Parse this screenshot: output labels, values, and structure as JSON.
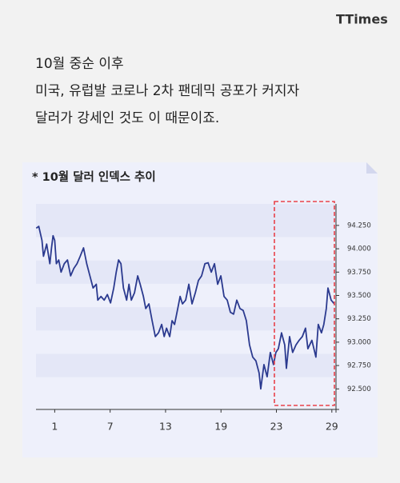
{
  "logo": "TTimes",
  "text_lines": [
    "10월 중순 이후",
    "미국, 유럽발 코로나 2차 팬데믹 공포가 커지자",
    "달러가 강세인 것도 이 때문이죠."
  ],
  "chart_data": {
    "type": "line",
    "title": "* 10월  달러 인덱스 추이",
    "color": "#2b3a8f",
    "x": [
      -0.33,
      -0.15,
      0.08,
      0.19,
      0.42,
      0.65,
      0.77,
      0.88,
      1.0,
      1.12,
      1.29,
      1.46,
      1.69,
      1.92,
      2.15,
      2.38,
      2.61,
      2.84,
      3.08,
      3.31,
      3.54,
      3.77,
      4.0,
      4.11,
      4.34,
      4.57,
      4.8,
      5.03,
      5.26,
      5.44,
      5.61,
      5.78,
      5.96,
      6.19,
      6.36,
      6.53,
      6.76,
      6.99,
      7.17,
      7.4,
      7.57,
      7.8,
      8.03,
      8.26,
      8.49,
      8.72,
      8.9,
      9.07,
      9.3,
      9.47,
      9.65,
      9.88,
      10.05,
      10.22,
      10.45,
      10.68,
      10.91,
      11.15,
      11.37,
      11.6,
      11.84,
      12.07,
      12.3,
      12.53,
      12.76,
      12.99,
      13.22,
      13.45,
      13.68,
      13.91,
      14.14,
      14.37,
      14.6,
      14.83,
      15.06,
      15.29,
      15.52,
      15.75,
      15.87,
      16.1,
      16.33,
      16.56,
      16.79,
      16.96,
      17.14,
      17.37,
      17.6,
      17.72,
      17.95,
      18.17,
      18.41,
      18.64,
      18.87,
      19.1,
      19.27,
      19.56,
      19.85,
      20.02,
      20.25,
      20.42,
      20.6,
      20.72,
      20.95,
      21.18
    ],
    "values": [
      94.22,
      94.24,
      94.09,
      93.92,
      94.05,
      93.84,
      94.01,
      94.14,
      94.09,
      93.84,
      93.88,
      93.75,
      93.84,
      93.88,
      93.71,
      93.79,
      93.84,
      93.92,
      94.01,
      93.84,
      93.71,
      93.58,
      93.62,
      93.45,
      93.49,
      93.45,
      93.51,
      93.42,
      93.58,
      93.75,
      93.88,
      93.84,
      93.58,
      93.45,
      93.62,
      93.45,
      93.53,
      93.71,
      93.62,
      93.49,
      93.36,
      93.41,
      93.23,
      93.06,
      93.1,
      93.19,
      93.06,
      93.15,
      93.06,
      93.23,
      93.19,
      93.36,
      93.49,
      93.41,
      93.45,
      93.62,
      93.41,
      93.53,
      93.66,
      93.71,
      93.84,
      93.85,
      93.75,
      93.84,
      93.62,
      93.71,
      93.49,
      93.45,
      93.32,
      93.3,
      93.45,
      93.36,
      93.34,
      93.23,
      92.97,
      92.84,
      92.8,
      92.67,
      92.5,
      92.76,
      92.63,
      92.89,
      92.76,
      92.89,
      92.93,
      93.1,
      92.97,
      92.72,
      93.06,
      92.89,
      92.97,
      93.02,
      93.06,
      93.15,
      92.93,
      93.02,
      92.84,
      93.19,
      93.1,
      93.19,
      93.36,
      93.58,
      93.45,
      93.41
    ],
    "xlim": [
      -0.35,
      21.3
    ],
    "xticks": [
      {
        "value": 1,
        "label": "1"
      },
      {
        "value": 5,
        "label": "7"
      },
      {
        "value": 9,
        "label": "13"
      },
      {
        "value": 13,
        "label": "19"
      },
      {
        "value": 17,
        "label": "23"
      },
      {
        "value": 21,
        "label": "29"
      }
    ],
    "ylim": [
      92.28,
      94.48
    ],
    "yticks": [
      {
        "value": 92.5,
        "label": "92.500"
      },
      {
        "value": 92.75,
        "label": "92.750"
      },
      {
        "value": 93,
        "label": "93.000"
      },
      {
        "value": 93.25,
        "label": "93.250"
      },
      {
        "value": 93.5,
        "label": "93.500"
      },
      {
        "value": 93.75,
        "label": "93.750"
      },
      {
        "value": 94,
        "label": "94.000"
      },
      {
        "value": 94.25,
        "label": "94.250"
      }
    ]
  }
}
